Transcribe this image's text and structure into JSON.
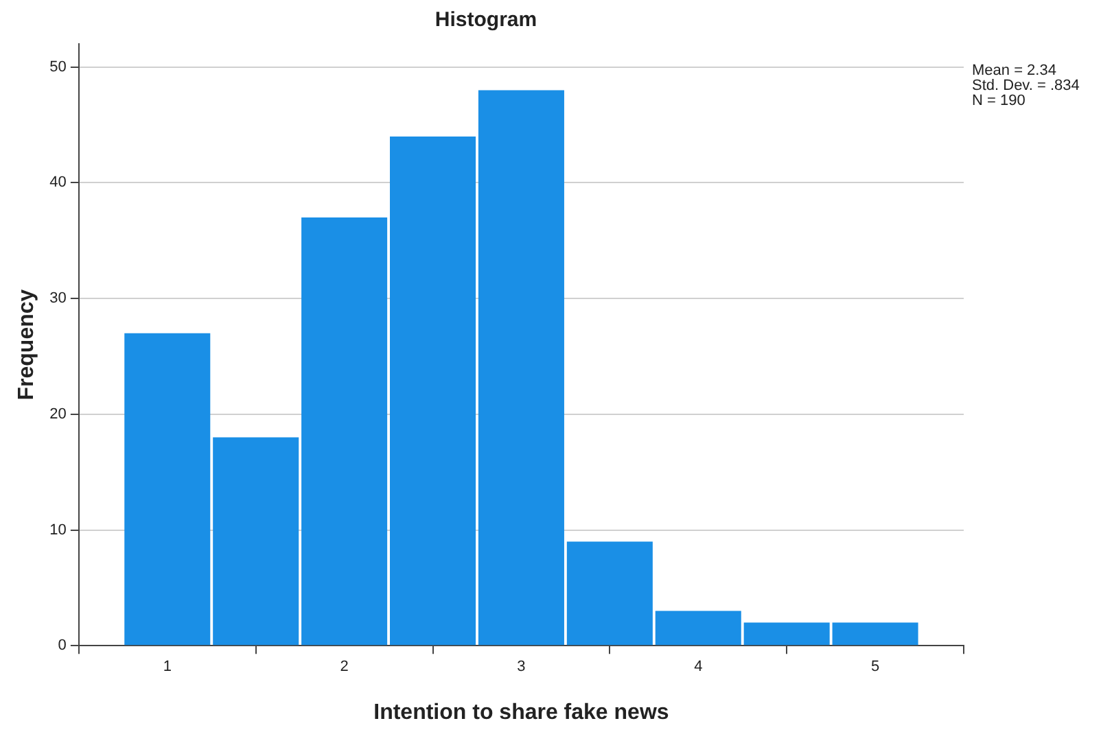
{
  "chart_data": {
    "type": "histogram",
    "title": "Histogram",
    "xlabel": "Intention to share fake news",
    "ylabel": "Frequency",
    "bins": [
      0.75,
      1.25,
      1.75,
      2.25,
      2.75,
      3.25,
      3.75,
      4.25,
      4.75,
      5.25
    ],
    "values": [
      27,
      18,
      37,
      44,
      48,
      9,
      3,
      2,
      2
    ],
    "color": "#1a8fe6",
    "xlim": [
      0.5,
      5.5
    ],
    "xticks": [
      1,
      2,
      3,
      4,
      5
    ],
    "ylim": [
      0,
      52
    ],
    "yticks": [
      0,
      10,
      20,
      30,
      40,
      50
    ],
    "grid": "y",
    "annotations": [
      "Mean = 2.34",
      "Std. Dev. = .834",
      "N = 190"
    ]
  }
}
